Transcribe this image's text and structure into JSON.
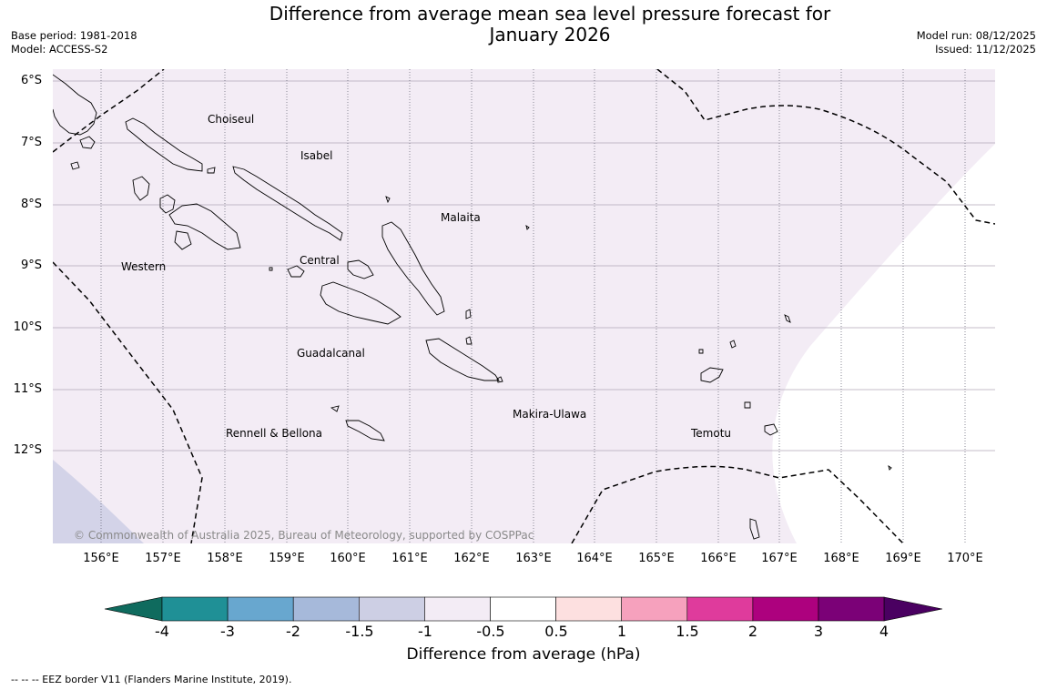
{
  "header": {
    "title_line1": "Difference from average mean sea level pressure forecast for",
    "title_line2": "January 2026",
    "base_period": "Base period: 1981-2018",
    "model": "Model: ACCESS-S2",
    "model_run": "Model run: 08/12/2025",
    "issued": "Issued: 11/12/2025"
  },
  "map": {
    "lat_labels": [
      "6°S",
      "7°S",
      "8°S",
      "9°S",
      "10°S",
      "11°S",
      "12°S"
    ],
    "lon_labels": [
      "156°E",
      "157°E",
      "158°E",
      "159°E",
      "160°E",
      "161°E",
      "162°E",
      "163°E",
      "164°E",
      "165°E",
      "166°E",
      "167°E",
      "168°E",
      "169°E",
      "170°E"
    ],
    "regions": {
      "choiseul": "Choiseul",
      "isabel": "Isabel",
      "malaita": "Malaita",
      "central": "Central",
      "western": "Western",
      "guadalcanal": "Guadalcanal",
      "makira": "Makira-Ulawa",
      "rennell": "Rennell & Bellona",
      "temotu": "Temotu"
    },
    "copyright": "© Commonwealth of Australia 2025, Bureau of Meteorology, supported by COSPPac",
    "colors": {
      "fill_minus_0_5_to_minus_1": "#f3ecf5",
      "fill_minus_1_to_minus_1_5": "#d3d3e8",
      "land_outline": "#000000"
    }
  },
  "colorbar": {
    "ticks": [
      "-4",
      "-3",
      "-2",
      "-1.5",
      "-1",
      "-0.5",
      "0.5",
      "1",
      "1.5",
      "2",
      "3",
      "4"
    ],
    "colors": [
      "#0f6b5e",
      "#1f9096",
      "#68a7cf",
      "#a6b9da",
      "#cdcfe4",
      "#f3ecf5",
      "#ffffff",
      "#fde0e0",
      "#f6a1bd",
      "#df3b9c",
      "#ad017e",
      "#7b0177",
      "#4a0061"
    ],
    "label": "Difference from average (hPa)"
  },
  "footer": {
    "legend": "--  --  -- EEZ border V11 (Flanders Marine Institute, 2019)."
  }
}
